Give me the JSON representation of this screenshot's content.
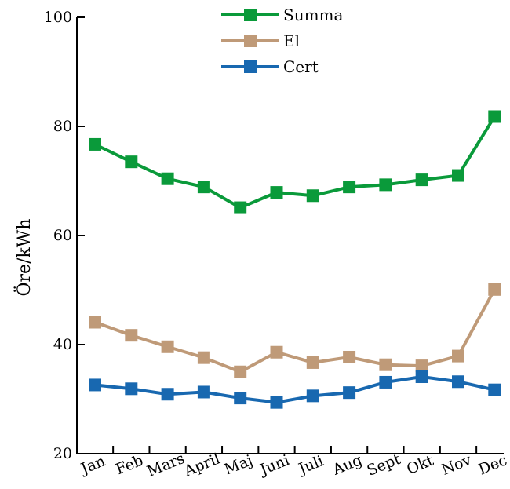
{
  "chart_data": {
    "type": "line",
    "title": "",
    "xlabel": "",
    "ylabel": "Öre/kWh",
    "ylim": [
      20,
      100
    ],
    "yticks": [
      20,
      40,
      60,
      80,
      100
    ],
    "ytick_labels": [
      "20",
      "40",
      "60",
      "80",
      "100"
    ],
    "categories": [
      "Jan",
      "Feb",
      "Mars",
      "April",
      "Maj",
      "Juni",
      "Juli",
      "Aug",
      "Sept",
      "Okt",
      "Nov",
      "Dec"
    ],
    "legend_position": "top-center",
    "grid": false,
    "series": [
      {
        "name": "Summa",
        "color": "#0a9a3a",
        "marker": "square",
        "values": [
          76.7,
          73.5,
          70.4,
          68.9,
          65.1,
          67.9,
          67.3,
          68.9,
          69.3,
          70.2,
          71.0,
          81.8
        ]
      },
      {
        "name": "El",
        "color": "#bf9a78",
        "marker": "square",
        "values": [
          44.1,
          41.7,
          39.6,
          37.6,
          35.0,
          38.6,
          36.7,
          37.7,
          36.3,
          36.1,
          37.9,
          50.1
        ]
      },
      {
        "name": "Cert",
        "color": "#1868b0",
        "marker": "square",
        "values": [
          32.6,
          31.9,
          30.9,
          31.3,
          30.2,
          29.4,
          30.6,
          31.2,
          33.1,
          34.1,
          33.2,
          31.7
        ]
      }
    ]
  }
}
